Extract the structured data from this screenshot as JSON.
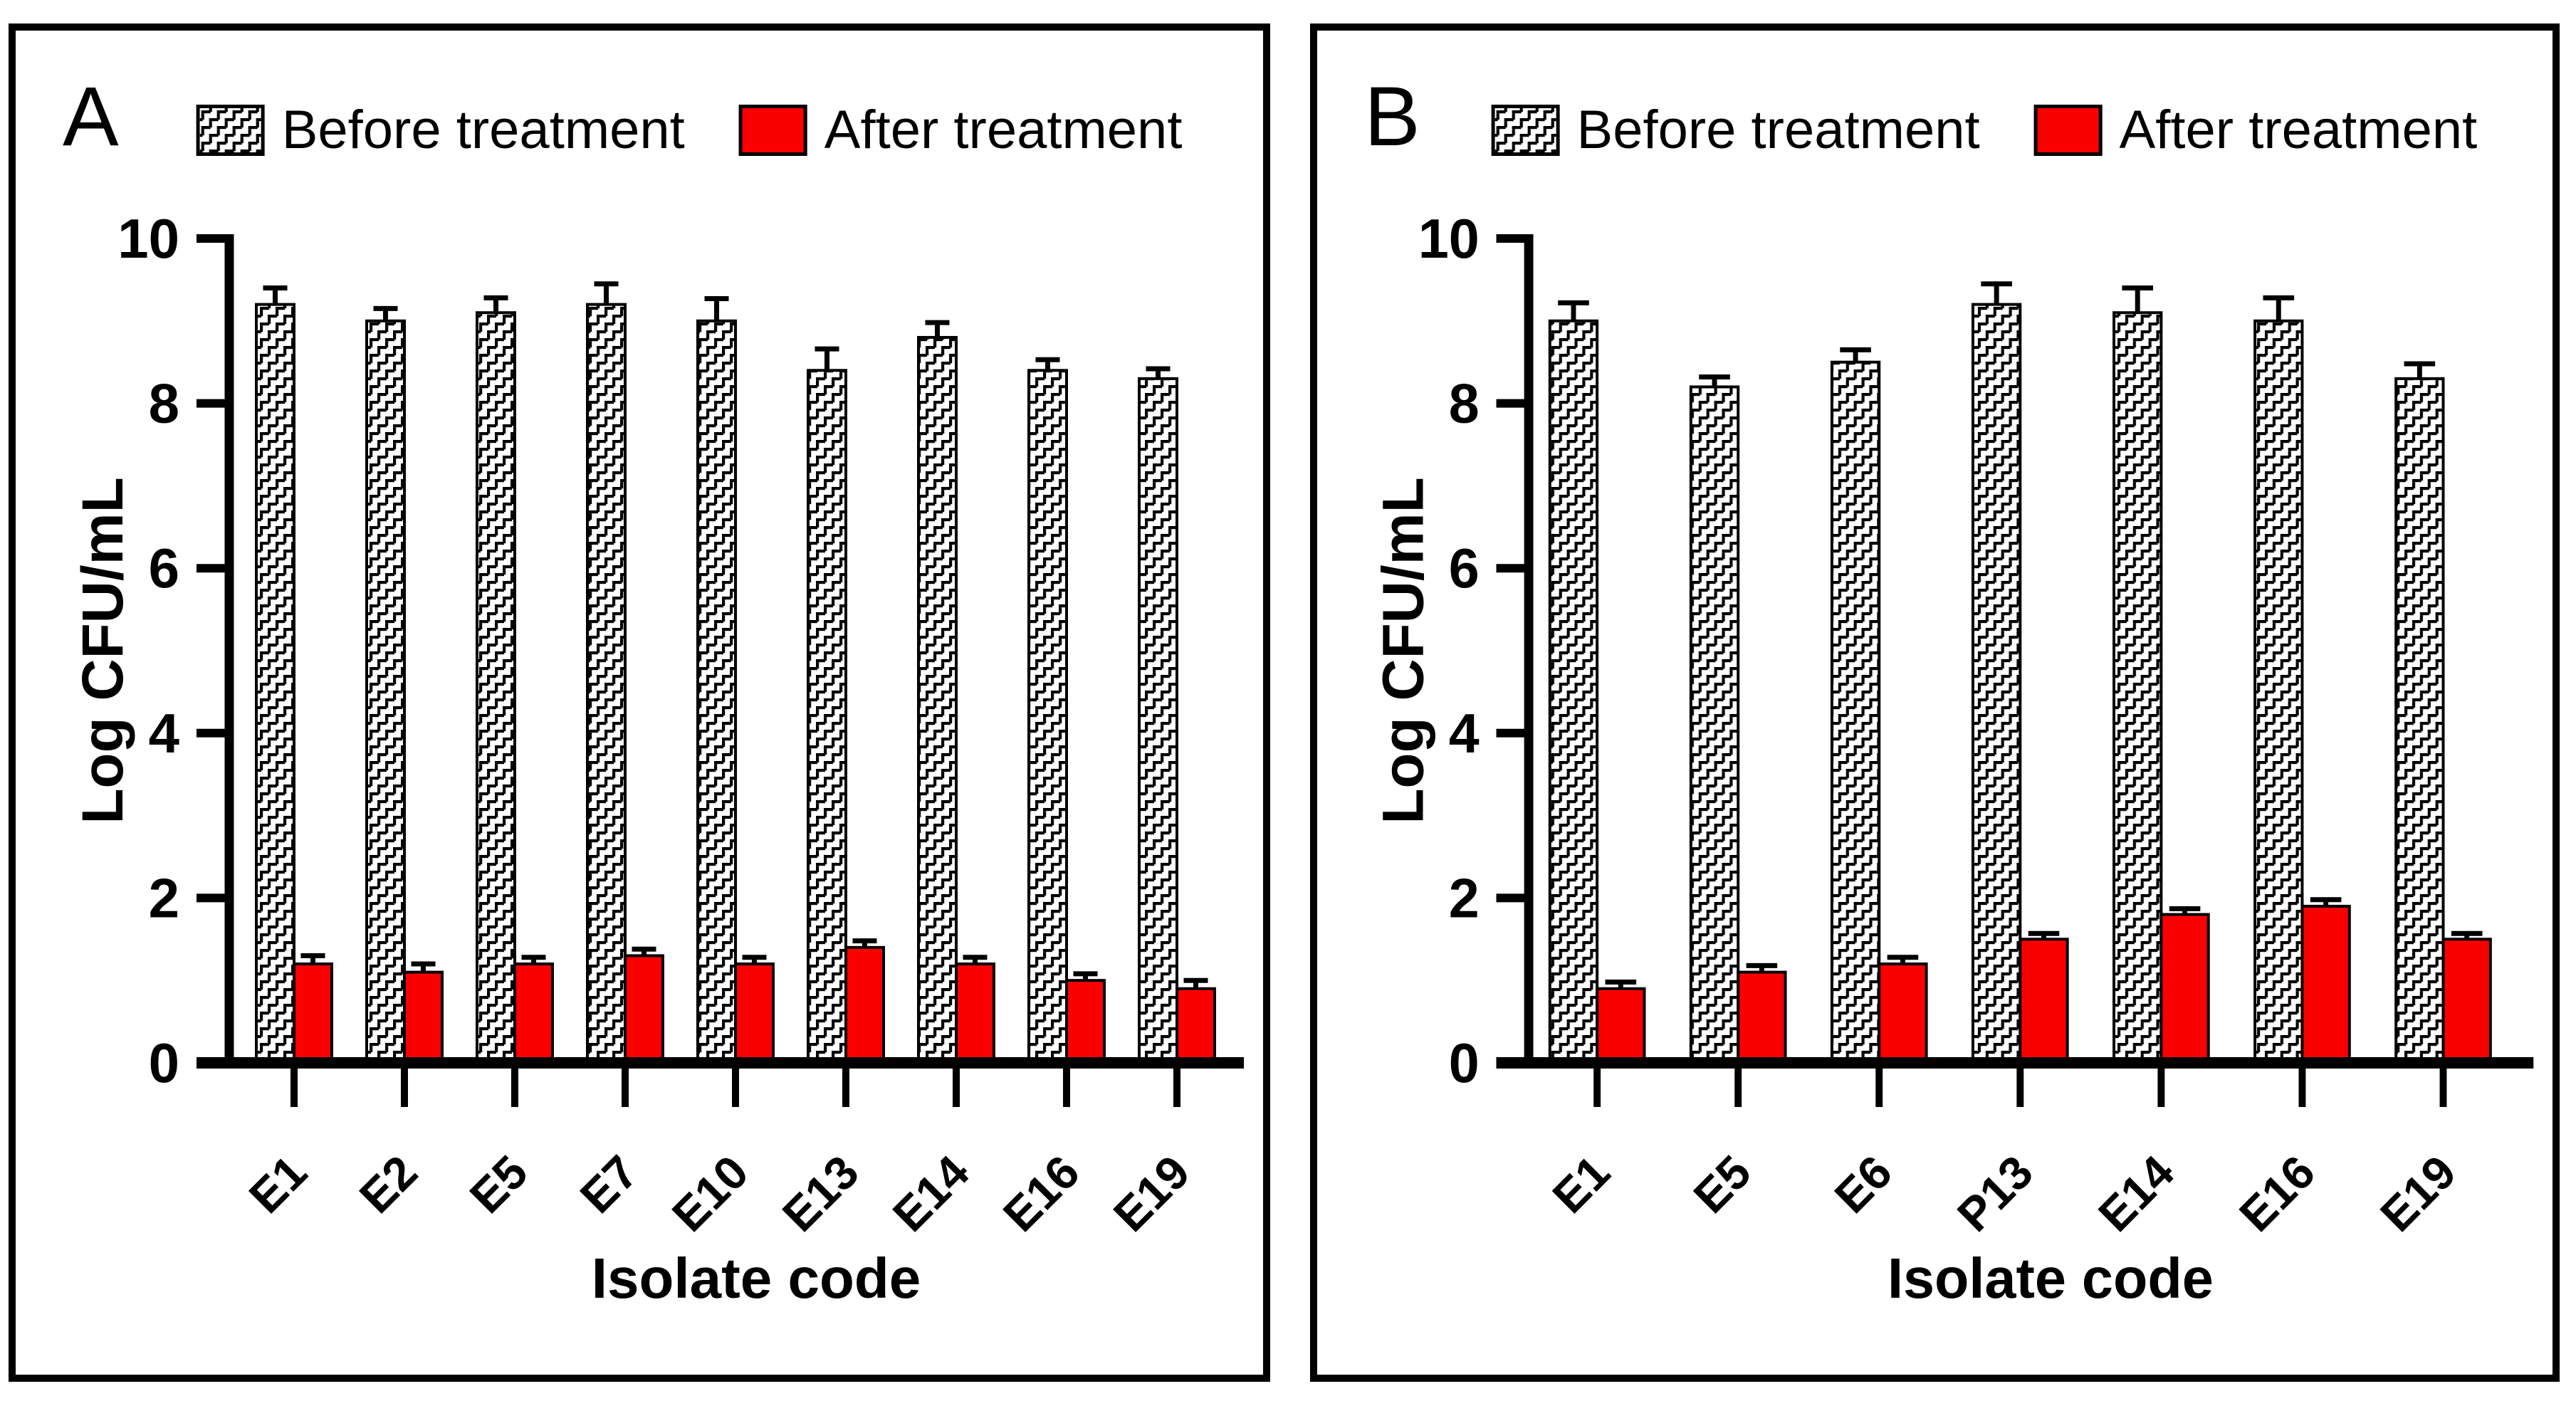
{
  "figure": {
    "background": "#ffffff",
    "panels": [
      {
        "label": "A"
      },
      {
        "label": "B"
      }
    ],
    "legend": {
      "before_label": "Before treatment",
      "after_label": "After treatment"
    },
    "colors": {
      "after_fill": "#fa0000",
      "before_fill": "#ffffff",
      "hatch": "#000000",
      "axis": "#000000",
      "text": "#000000"
    }
  },
  "chart_data": [
    {
      "type": "bar",
      "panel": "A",
      "title": "",
      "categories": [
        "E1",
        "E2",
        "E5",
        "E7",
        "E10",
        "E13",
        "E14",
        "E16",
        "E19"
      ],
      "series": [
        {
          "name": "Before treatment",
          "style": "hatched",
          "values": [
            9.2,
            9.0,
            9.1,
            9.2,
            9.0,
            8.4,
            8.8,
            8.4,
            8.3
          ],
          "errors": [
            0.2,
            0.15,
            0.18,
            0.25,
            0.27,
            0.26,
            0.18,
            0.13,
            0.12
          ]
        },
        {
          "name": "After treatment",
          "style": "solid",
          "values": [
            1.2,
            1.1,
            1.2,
            1.3,
            1.2,
            1.4,
            1.2,
            1.0,
            0.9
          ],
          "errors": [
            0.1,
            0.1,
            0.08,
            0.08,
            0.08,
            0.08,
            0.08,
            0.08,
            0.1
          ]
        }
      ],
      "xlabel": "Isolate code",
      "ylabel": "Log CFU/mL",
      "ylim": [
        0,
        10
      ],
      "yticks": [
        0,
        2,
        4,
        6,
        8,
        10
      ],
      "legend_position": "top",
      "grid": false
    },
    {
      "type": "bar",
      "panel": "B",
      "title": "",
      "categories": [
        "E1",
        "E5",
        "E6",
        "P13",
        "E14",
        "E16",
        "E19"
      ],
      "series": [
        {
          "name": "Before treatment",
          "style": "hatched",
          "values": [
            9.0,
            8.2,
            8.5,
            9.2,
            9.1,
            9.0,
            8.3
          ],
          "errors": [
            0.22,
            0.12,
            0.15,
            0.25,
            0.3,
            0.28,
            0.18
          ]
        },
        {
          "name": "After treatment",
          "style": "solid",
          "values": [
            0.9,
            1.1,
            1.2,
            1.5,
            1.8,
            1.9,
            1.5
          ],
          "errors": [
            0.08,
            0.08,
            0.08,
            0.07,
            0.07,
            0.08,
            0.07
          ]
        }
      ],
      "xlabel": "Isolate code",
      "ylabel": "Log CFU/mL",
      "ylim": [
        0,
        10
      ],
      "yticks": [
        0,
        2,
        4,
        6,
        8,
        10
      ],
      "legend_position": "top",
      "grid": false
    }
  ]
}
